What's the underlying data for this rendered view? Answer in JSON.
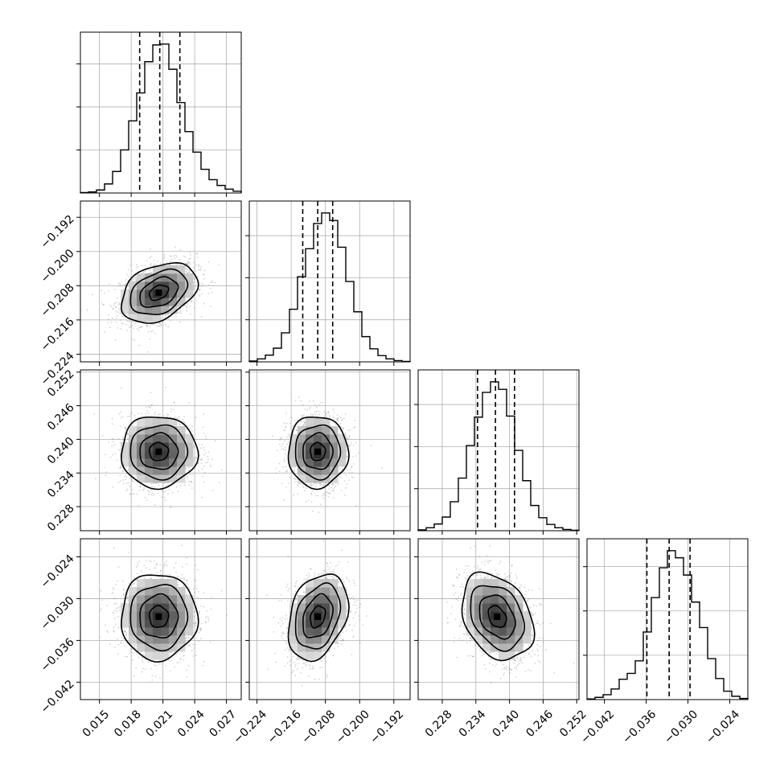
{
  "chart_data": {
    "type": "corner",
    "variables": 4,
    "quantiles": [
      0.16,
      0.5,
      0.84
    ],
    "grid": true,
    "ranges": [
      [
        0.0132,
        0.0284
      ],
      [
        -0.2258,
        -0.1882
      ],
      [
        0.2237,
        0.2524
      ],
      [
        -0.0445,
        -0.0214
      ]
    ],
    "ticks": [
      {
        "values": [
          0.015,
          0.018,
          0.021,
          0.024,
          0.027
        ],
        "labels": [
          "0.015",
          "0.018",
          "0.021",
          "0.024",
          "0.027"
        ]
      },
      {
        "values": [
          -0.224,
          -0.216,
          -0.208,
          -0.2,
          -0.192
        ],
        "labels": [
          "−0.224",
          "−0.216",
          "−0.208",
          "−0.200",
          "−0.192"
        ]
      },
      {
        "values": [
          0.228,
          0.234,
          0.24,
          0.246,
          0.252
        ],
        "labels": [
          "0.228",
          "0.234",
          "0.240",
          "0.246",
          "0.252"
        ]
      },
      {
        "values": [
          -0.042,
          -0.036,
          -0.03,
          -0.024
        ],
        "labels": [
          "−0.042",
          "−0.036",
          "−0.030",
          "−0.024"
        ]
      }
    ],
    "marginals": [
      {
        "variable": 0,
        "q16": 0.0188,
        "q50": 0.0207,
        "q84": 0.0226,
        "counts": [
          2,
          5,
          14,
          42,
          100,
          200,
          335,
          465,
          610,
          688,
          692,
          575,
          420,
          285,
          190,
          110,
          62,
          35,
          18,
          8
        ]
      },
      {
        "variable": 1,
        "q16": -0.2133,
        "q50": -0.2098,
        "q84": -0.2063,
        "counts": [
          4,
          14,
          32,
          65,
          138,
          250,
          405,
          538,
          658,
          708,
          672,
          545,
          382,
          238,
          120,
          62,
          30,
          14,
          6,
          2
        ]
      },
      {
        "variable": 2,
        "q16": 0.2343,
        "q50": 0.2375,
        "q84": 0.2409,
        "counts": [
          4,
          14,
          32,
          65,
          138,
          250,
          405,
          540,
          658,
          708,
          672,
          545,
          382,
          238,
          120,
          62,
          30,
          14,
          6,
          2
        ]
      },
      {
        "variable": 3,
        "q16": -0.0359,
        "q50": -0.0327,
        "q84": -0.0297,
        "counts": [
          3,
          10,
          22,
          48,
          92,
          118,
          175,
          305,
          460,
          595,
          672,
          640,
          562,
          440,
          325,
          185,
          95,
          38,
          15,
          5
        ]
      }
    ],
    "pairs": [
      {
        "x": 0,
        "y": 1,
        "center": [
          0.0206,
          -0.2096
        ],
        "sd": [
          0.0018,
          0.0035
        ],
        "rho": 0.35
      },
      {
        "x": 0,
        "y": 2,
        "center": [
          0.0206,
          0.2378
        ],
        "sd": [
          0.0018,
          0.0032
        ],
        "rho": 0.0
      },
      {
        "x": 1,
        "y": 2,
        "center": [
          -0.2098,
          0.2378
        ],
        "sd": [
          0.0035,
          0.0032
        ],
        "rho": 0.0
      },
      {
        "x": 0,
        "y": 3,
        "center": [
          0.0206,
          -0.0326
        ],
        "sd": [
          0.0018,
          0.0031
        ],
        "rho": 0.0
      },
      {
        "x": 1,
        "y": 3,
        "center": [
          -0.2098,
          -0.0326
        ],
        "sd": [
          0.0035,
          0.0031
        ],
        "rho": 0.3
      },
      {
        "x": 2,
        "y": 3,
        "center": [
          0.2378,
          -0.0326
        ],
        "sd": [
          0.0032,
          0.0031
        ],
        "rho": -0.3
      }
    ],
    "contour_levels": [
      0.5,
      1.0,
      1.5,
      2.0
    ],
    "colors": {
      "line": "#000000",
      "grid": "#b0b0b0",
      "scatter": "#808080"
    }
  }
}
